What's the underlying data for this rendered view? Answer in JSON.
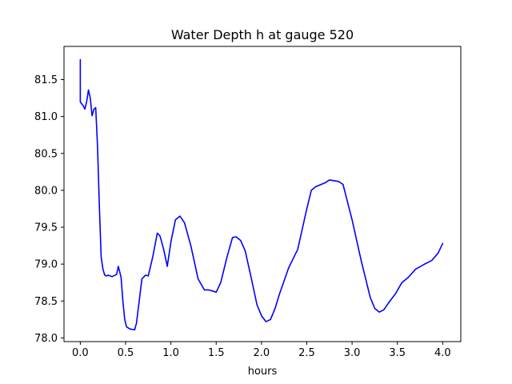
{
  "chart_data": {
    "type": "line",
    "title": "Water Depth h at gauge 520",
    "xlabel": "hours",
    "ylabel": "",
    "xlim": [
      -0.18,
      4.2
    ],
    "ylim": [
      77.95,
      81.95
    ],
    "xticks": [
      0.0,
      0.5,
      1.0,
      1.5,
      2.0,
      2.5,
      3.0,
      3.5,
      4.0
    ],
    "xtick_labels": [
      "0.0",
      "0.5",
      "1.0",
      "1.5",
      "2.0",
      "2.5",
      "3.0",
      "3.5",
      "4.0"
    ],
    "yticks": [
      78.0,
      78.5,
      79.0,
      79.5,
      80.0,
      80.5,
      81.0,
      81.5
    ],
    "ytick_labels": [
      "78.0",
      "78.5",
      "79.0",
      "79.5",
      "80.0",
      "80.5",
      "81.0",
      "81.5"
    ],
    "grid": false,
    "legend": "none",
    "series": [
      {
        "color": "#0000ff",
        "x": [
          0.0,
          0.0,
          0.01,
          0.03,
          0.05,
          0.07,
          0.09,
          0.11,
          0.13,
          0.15,
          0.17,
          0.19,
          0.21,
          0.23,
          0.25,
          0.27,
          0.29,
          0.31,
          0.35,
          0.4,
          0.42,
          0.45,
          0.47,
          0.49,
          0.51,
          0.55,
          0.6,
          0.62,
          0.65,
          0.68,
          0.72,
          0.75,
          0.8,
          0.85,
          0.88,
          0.92,
          0.96,
          1.0,
          1.05,
          1.1,
          1.15,
          1.22,
          1.3,
          1.37,
          1.42,
          1.5,
          1.55,
          1.62,
          1.68,
          1.72,
          1.77,
          1.82,
          1.88,
          1.95,
          2.0,
          2.05,
          2.1,
          2.15,
          2.2,
          2.3,
          2.4,
          2.5,
          2.55,
          2.6,
          2.7,
          2.75,
          2.85,
          2.9,
          3.0,
          3.1,
          3.15,
          3.2,
          3.25,
          3.3,
          3.35,
          3.4,
          3.48,
          3.55,
          3.62,
          3.7,
          3.8,
          3.88,
          3.95,
          4.0
        ],
        "y": [
          81.77,
          81.2,
          81.18,
          81.15,
          81.1,
          81.2,
          81.36,
          81.25,
          81.01,
          81.1,
          81.12,
          80.6,
          79.8,
          79.1,
          78.93,
          78.85,
          78.84,
          78.85,
          78.83,
          78.86,
          78.97,
          78.82,
          78.5,
          78.25,
          78.15,
          78.12,
          78.11,
          78.2,
          78.5,
          78.8,
          78.85,
          78.84,
          79.1,
          79.42,
          79.38,
          79.2,
          78.97,
          79.3,
          79.6,
          79.65,
          79.56,
          79.25,
          78.8,
          78.65,
          78.65,
          78.62,
          78.75,
          79.1,
          79.36,
          79.37,
          79.32,
          79.18,
          78.85,
          78.45,
          78.3,
          78.22,
          78.25,
          78.4,
          78.6,
          78.95,
          79.2,
          79.75,
          80.0,
          80.05,
          80.1,
          80.14,
          80.12,
          80.08,
          79.6,
          79.05,
          78.8,
          78.55,
          78.4,
          78.35,
          78.38,
          78.47,
          78.6,
          78.75,
          78.82,
          78.93,
          79.0,
          79.05,
          79.15,
          79.28
        ]
      }
    ]
  }
}
